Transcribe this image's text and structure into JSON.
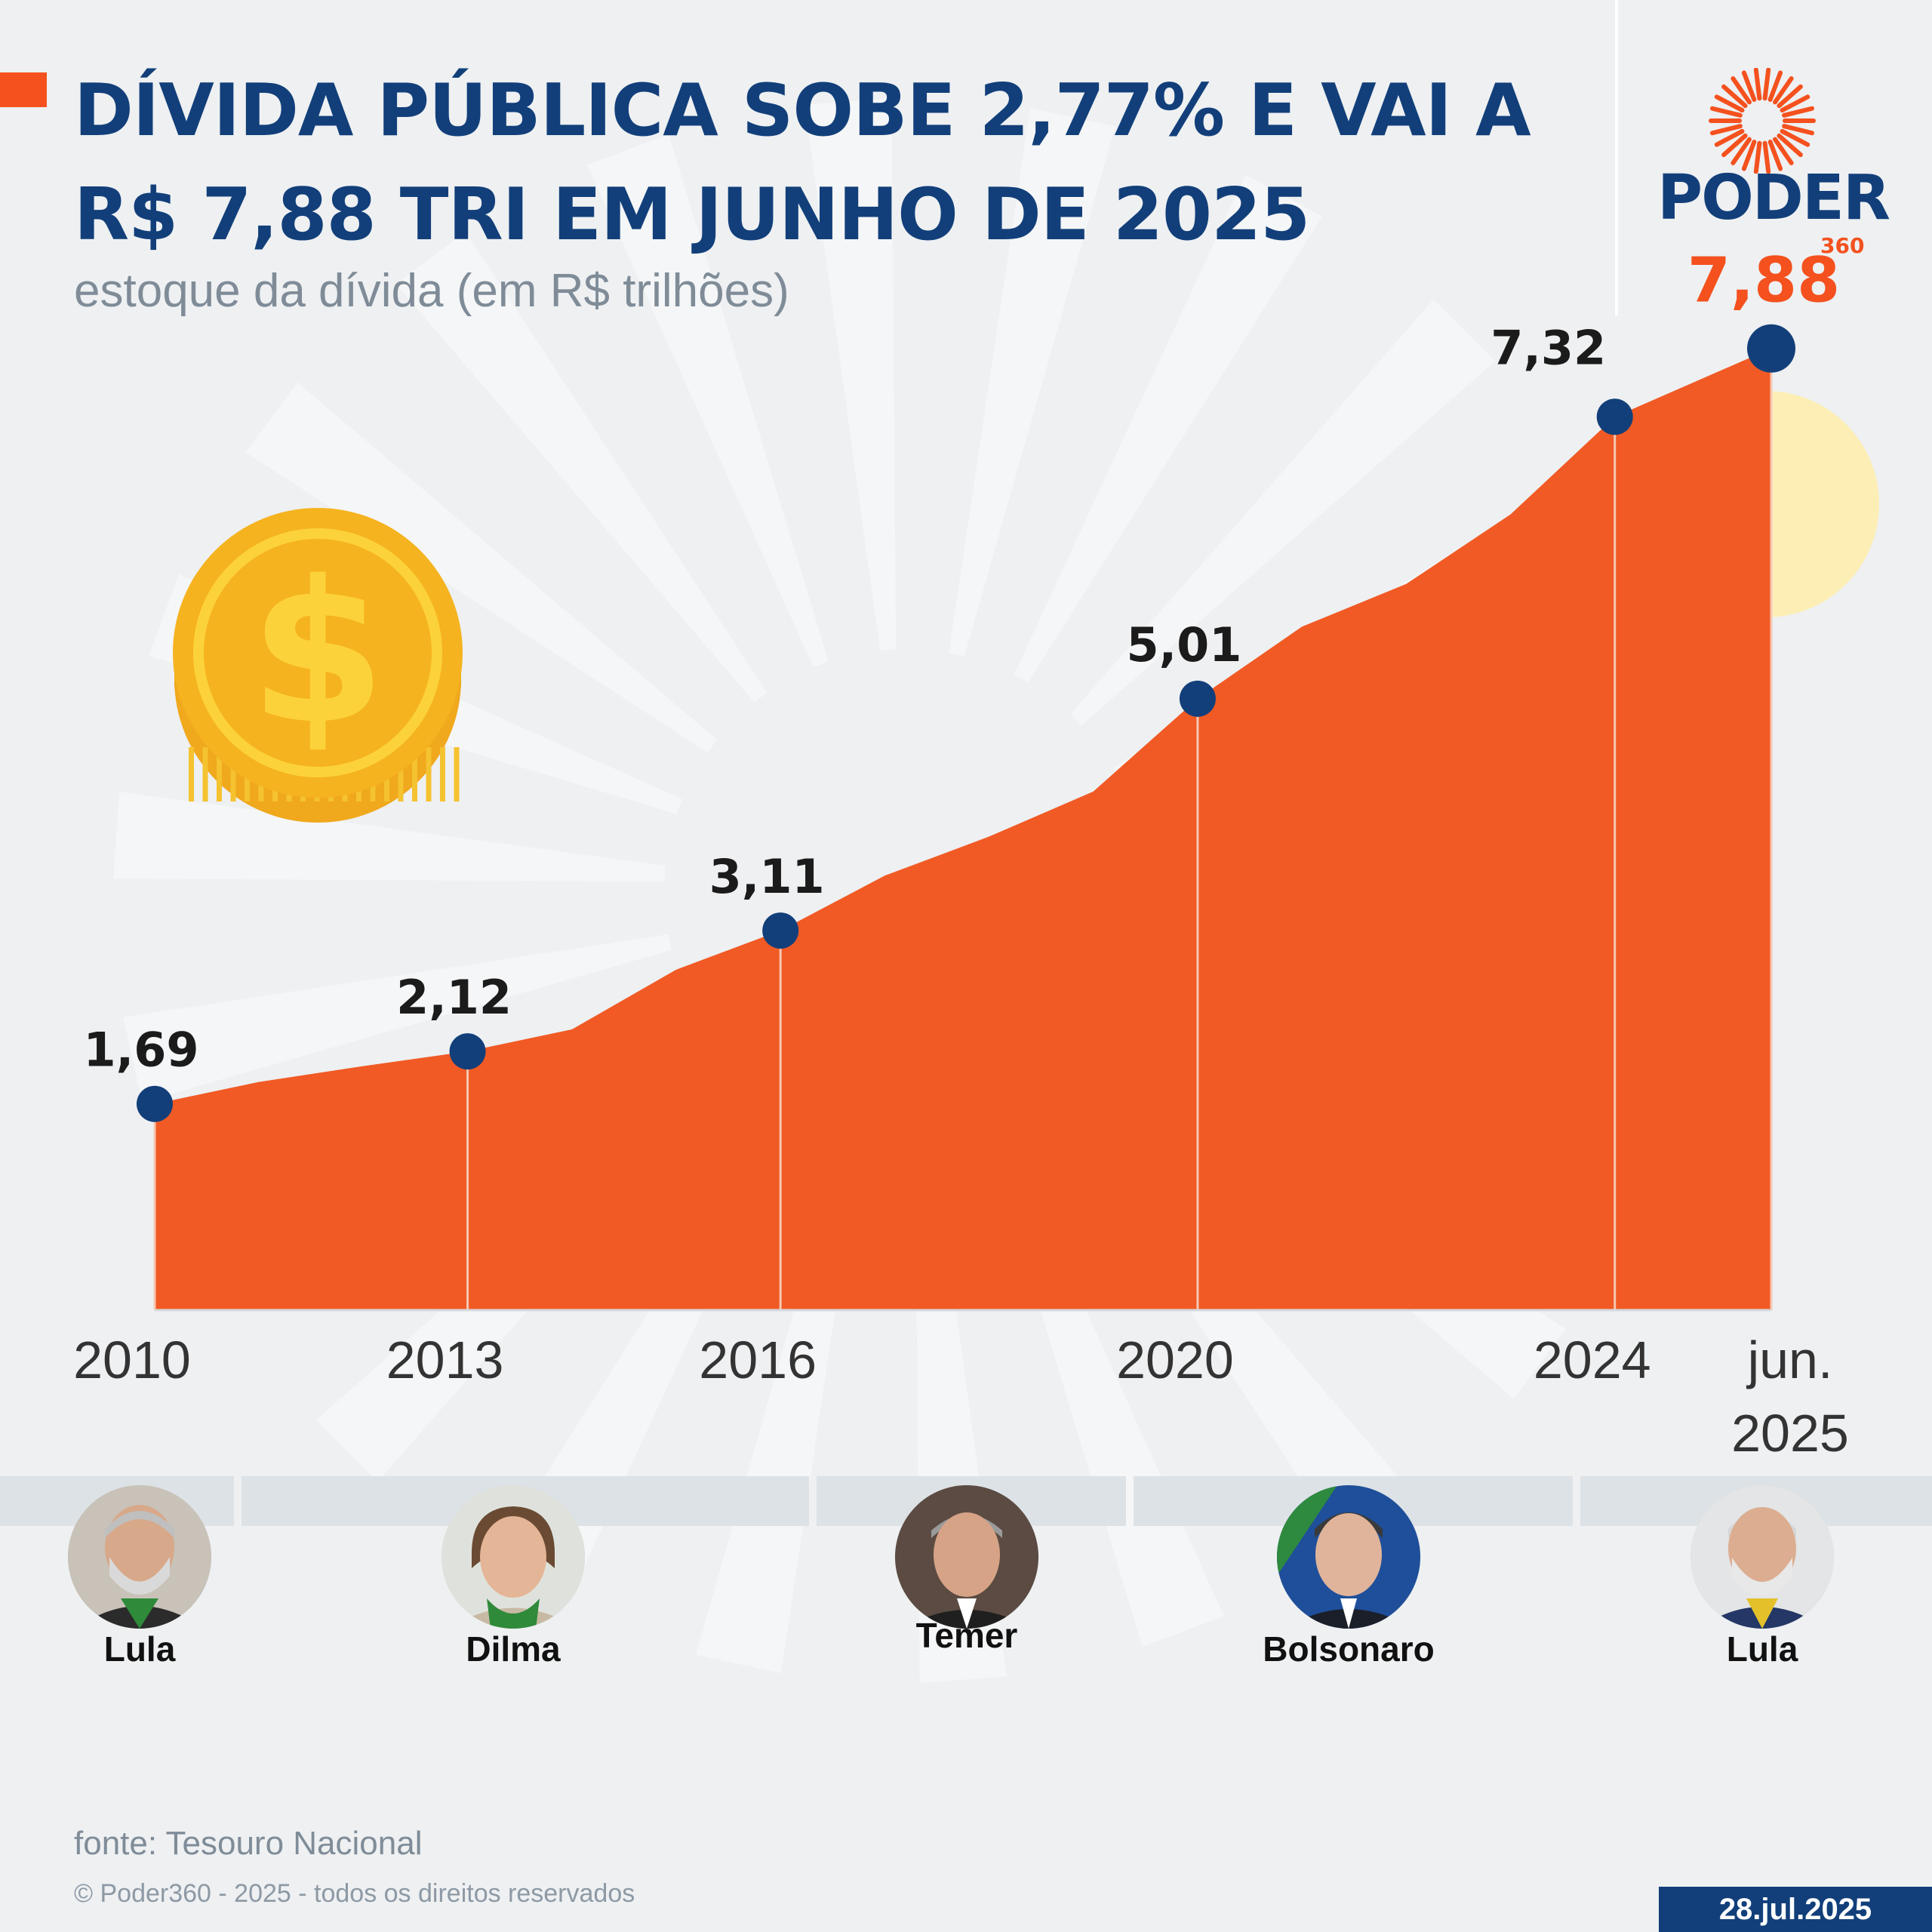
{
  "header": {
    "title": "DÍVIDA PÚBLICA SOBE 2,77% E VAI A R$ 7,88 TRI EM JUNHO DE 2025",
    "subtitle": "estoque da dívida (em R$ trilhões)"
  },
  "logo": {
    "word": "PODER",
    "number": "360"
  },
  "colors": {
    "navy": "#123f7a",
    "orange": "#f4511e",
    "highlight": "#fdeeb5",
    "coin": "#f5b31f"
  },
  "decorations": {
    "coin_icon": "dollar-coin-icon",
    "logo_icon": "sunburst-icon"
  },
  "chart_data": {
    "type": "area",
    "x": [
      2010,
      2011,
      2012,
      2013,
      2014,
      2015,
      2016,
      2017,
      2018,
      2019,
      2020,
      2021,
      2022,
      2023,
      2024,
      2025.5
    ],
    "values": [
      1.69,
      1.87,
      2.0,
      2.12,
      2.3,
      2.79,
      3.11,
      3.56,
      3.88,
      4.25,
      5.01,
      5.6,
      5.95,
      6.52,
      7.32,
      7.88
    ],
    "highlighted_points": [
      {
        "x": 2010,
        "label": "1,69"
      },
      {
        "x": 2013,
        "label": "2,12"
      },
      {
        "x": 2016,
        "label": "3,11"
      },
      {
        "x": 2020,
        "label": "5,01"
      },
      {
        "x": 2024,
        "label": "7,32"
      },
      {
        "x": 2025.5,
        "label": "7,88",
        "emphasis": true
      }
    ],
    "x_ticks": [
      {
        "x": 2010,
        "label": "2010"
      },
      {
        "x": 2013,
        "label": "2013"
      },
      {
        "x": 2016,
        "label": "2016"
      },
      {
        "x": 2020,
        "label": "2020"
      },
      {
        "x": 2024,
        "label": "2024"
      },
      {
        "x": 2025.5,
        "label": "jun.\n2025"
      }
    ],
    "ylim": [
      0,
      8.5
    ]
  },
  "presidents": [
    {
      "name": "Lula",
      "from": 2010,
      "to": 2011
    },
    {
      "name": "Dilma",
      "from": 2011,
      "to": 2016
    },
    {
      "name": "Temer",
      "from": 2016,
      "to": 2019
    },
    {
      "name": "Bolsonaro",
      "from": 2019,
      "to": 2023
    },
    {
      "name": "Lula",
      "from": 2023,
      "to": 2025.5
    }
  ],
  "footer": {
    "source": "fonte: Tesouro Nacional",
    "copyright": "© Poder360 - 2025 - todos os direitos reservados",
    "date": "28.jul.2025"
  }
}
